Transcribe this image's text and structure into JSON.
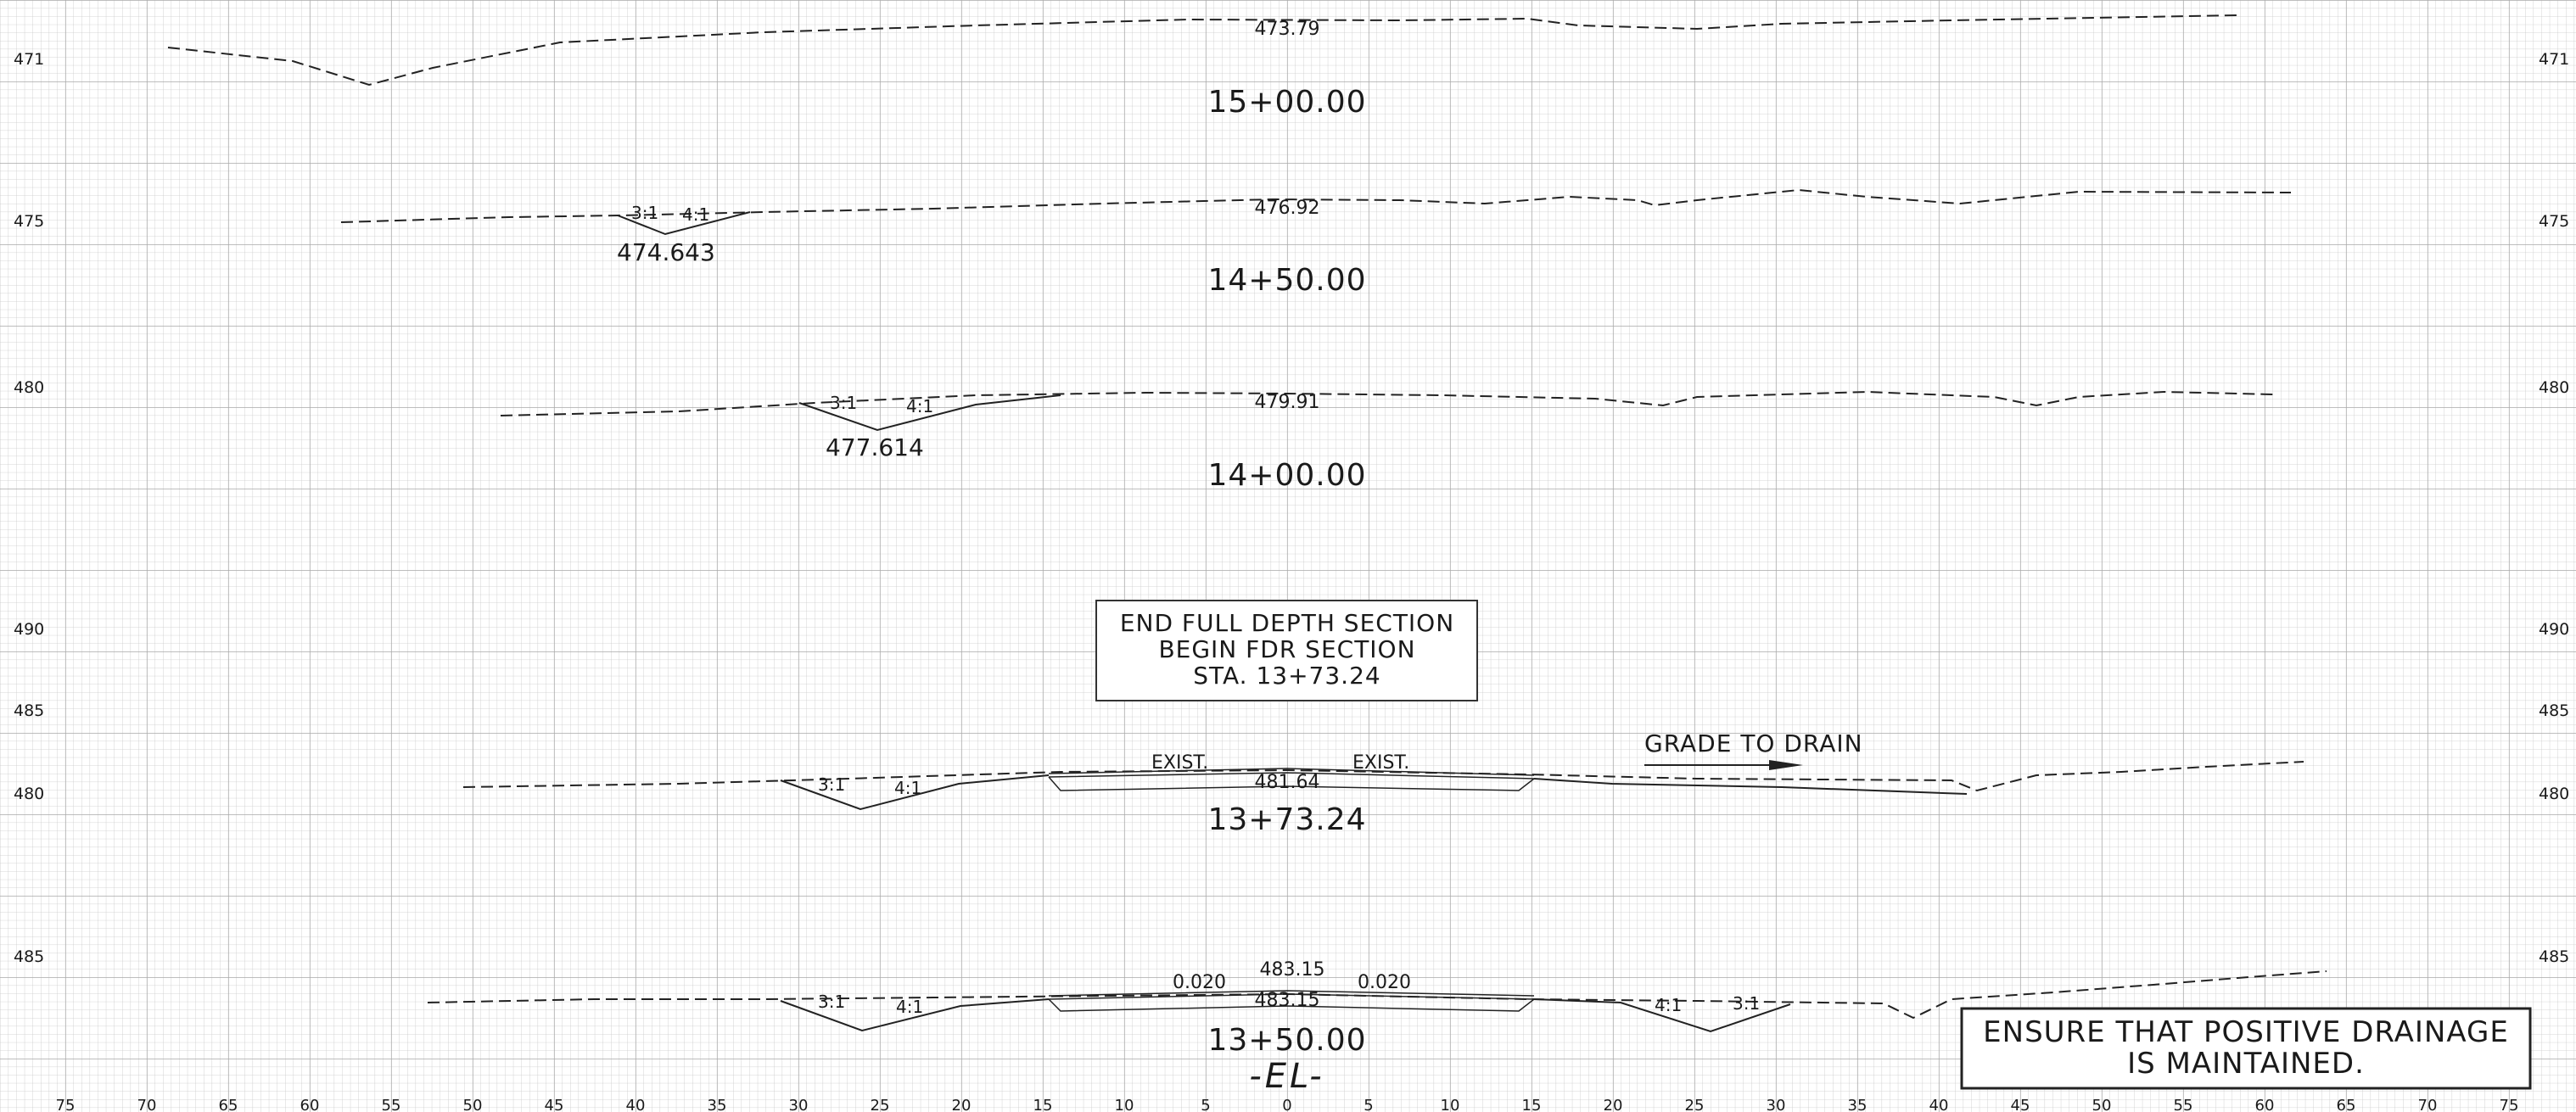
{
  "left_elevation_labels": [
    "471",
    "475",
    "480",
    "490",
    "485",
    "480",
    "485"
  ],
  "right_elevation_labels": [
    "471",
    "475",
    "480",
    "490",
    "485",
    "480",
    "485"
  ],
  "sections": [
    {
      "station": "15+00.00",
      "center_elevation": "473.79",
      "slope_left": "",
      "slope_right": "",
      "ditch_elevation": ""
    },
    {
      "station": "14+50.00",
      "center_elevation": "476.92",
      "slope_left": "3:1",
      "slope_right": "4:1",
      "ditch_elevation": "474.643"
    },
    {
      "station": "14+00.00",
      "center_elevation": "479.91",
      "slope_left": "3:1",
      "slope_right": "4:1",
      "ditch_elevation": "477.614"
    },
    {
      "station": "13+73.24",
      "center_elevation": "481.64",
      "slope_left": "3:1",
      "slope_right": "4:1",
      "exist_left": "EXIST.",
      "exist_right": "EXIST."
    },
    {
      "station": "13+50.00",
      "center_elevation_top": "483.15",
      "center_elevation": "483.15",
      "cross_slope_left": "0.020",
      "cross_slope_right": "0.020",
      "slope_left": "3:1",
      "slope_right": "4:1",
      "slope_far_left": "4:1",
      "slope_far_right": "3:1"
    }
  ],
  "section_note": {
    "line1": "END  FULL  DEPTH  SECTION",
    "line2": "BEGIN  FDR  SECTION",
    "line3": "STA. 13+73.24"
  },
  "grade_note": "GRADE  TO  DRAIN",
  "drainage_note": {
    "line1": "ENSURE  THAT  POSITIVE  DRAINAGE",
    "line2": "IS  MAINTAINED."
  },
  "centerline_label": "-EL-",
  "offset_labels": [
    "75",
    "70",
    "65",
    "60",
    "55",
    "50",
    "45",
    "40",
    "35",
    "30",
    "25",
    "20",
    "15",
    "10",
    "5",
    "0",
    "5",
    "10",
    "15",
    "20",
    "25",
    "30",
    "35",
    "40",
    "45",
    "50",
    "55",
    "60",
    "65",
    "70",
    "75"
  ]
}
